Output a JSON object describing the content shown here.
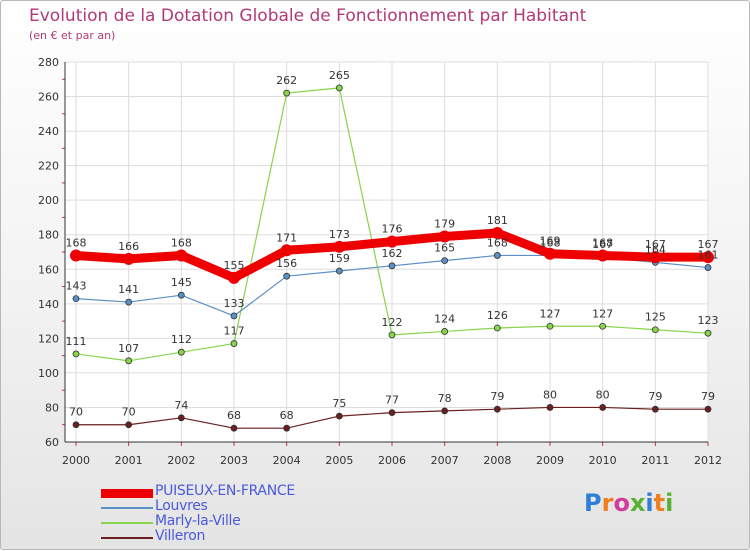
{
  "title": "Evolution de la Dotation Globale de Fonctionnement par Habitant",
  "subtitle": "(en € et par an)",
  "logo": "Proxiti",
  "chart_data": {
    "type": "line",
    "title": "Evolution de la Dotation Globale de Fonctionnement par Habitant",
    "subtitle": "(en € et par an)",
    "xlabel": "",
    "ylabel": "",
    "x": [
      "2000",
      "2001",
      "2002",
      "2003",
      "2004",
      "2005",
      "2006",
      "2007",
      "2008",
      "2009",
      "2010",
      "2011",
      "2012"
    ],
    "ylim": [
      60,
      280
    ],
    "yticks": [
      60,
      80,
      100,
      120,
      140,
      160,
      180,
      200,
      220,
      240,
      260,
      280
    ],
    "grid": true,
    "legend": "bottom-left",
    "series": [
      {
        "name": "PUISEUX-EN-FRANCE",
        "color": "#ee0000",
        "values": [
          168,
          166,
          168,
          155,
          171,
          173,
          176,
          179,
          181,
          169,
          168,
          167,
          167
        ]
      },
      {
        "name": "Louvres",
        "color": "#5b8fc7",
        "values": [
          143,
          141,
          145,
          133,
          156,
          159,
          162,
          165,
          168,
          168,
          167,
          164,
          161
        ]
      },
      {
        "name": "Marly-la-Ville",
        "color": "#88d44a",
        "values": [
          111,
          107,
          112,
          117,
          262,
          265,
          122,
          124,
          126,
          127,
          127,
          125,
          123
        ]
      },
      {
        "name": "Villeron",
        "color": "#6b1f1f",
        "values": [
          70,
          70,
          74,
          68,
          68,
          75,
          77,
          78,
          79,
          80,
          80,
          79,
          79
        ]
      }
    ]
  }
}
